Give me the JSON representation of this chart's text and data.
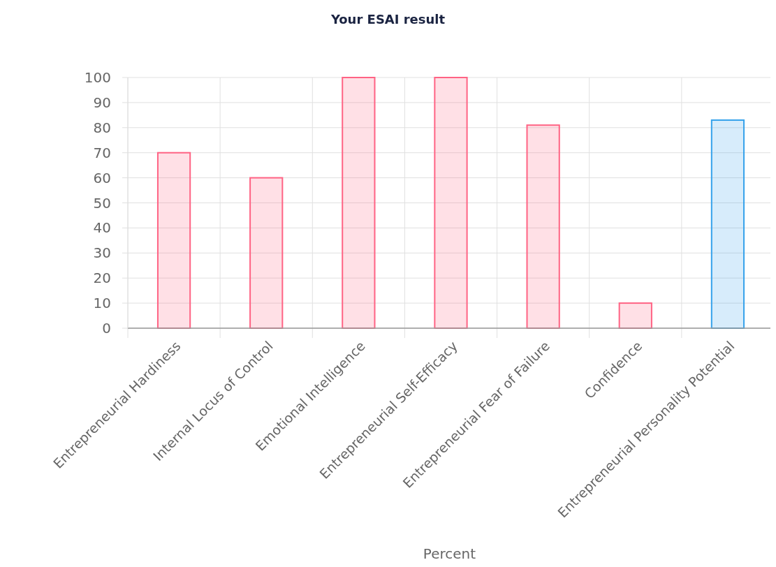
{
  "chart_data": {
    "type": "bar",
    "title": "Your ESAI result",
    "xlabel": "Percent",
    "categories": [
      "Entrepreneurial Hardiness",
      "Internal Locus of Control",
      "Emotional Intelligence",
      "Entrepreneurial Self-Efficacy",
      "Entrepreneurial Fear of Failure",
      "Confidence",
      "Entrepreneurial Personality Potential"
    ],
    "values": [
      70,
      60,
      100,
      100,
      81,
      10,
      83
    ],
    "colors": [
      "#ff6384",
      "#ff6384",
      "#ff6384",
      "#ff6384",
      "#ff6384",
      "#ff6384",
      "#36a2eb"
    ],
    "ylim": [
      0,
      100
    ],
    "yticks": [
      0,
      10,
      20,
      30,
      40,
      50,
      60,
      70,
      80,
      90,
      100
    ],
    "grid": true
  }
}
